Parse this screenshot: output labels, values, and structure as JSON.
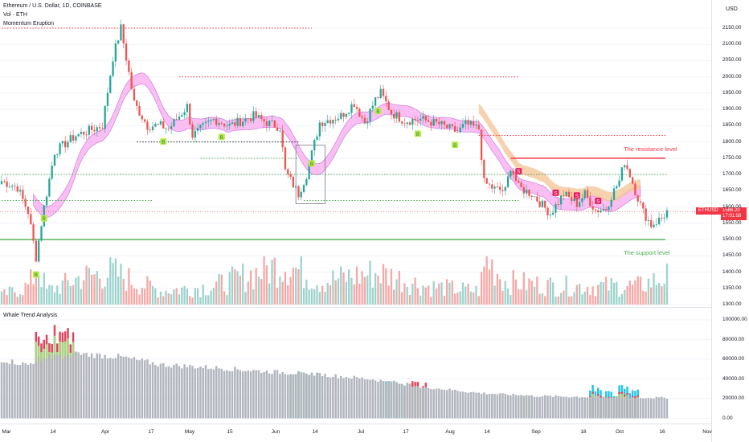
{
  "legend": {
    "title": "Ethereum / U.S. Dollar, 1D, COINBASE",
    "vol": "Vol · ETH",
    "indicator": "Momentum Eruption",
    "lower_indicator": "Whale Trend Analysis"
  },
  "currency": "USD",
  "price_badge": {
    "symbol": "ETHUSD",
    "price": "1586.20",
    "countdown": "17:01:58"
  },
  "colors": {
    "up": "#26a69a",
    "down": "#ef5350",
    "support": "#4caf50",
    "resistance": "#f23645",
    "band_pink": "#f7a8ee",
    "band_orange": "#f5c79a"
  },
  "annotations": {
    "resistance": "The resistance level",
    "support": "The support level"
  },
  "signal_marks": {
    "buy": "B",
    "sell": "S"
  },
  "chart_data": [
    {
      "type": "candlestick",
      "title": "Ethereum / U.S. Dollar, 1D, COINBASE",
      "y_ticks": [
        "2150.00",
        "2100.00",
        "2050.00",
        "2000.00",
        "1950.00",
        "1900.00",
        "1850.00",
        "1800.00",
        "1750.00",
        "1700.00",
        "1650.00",
        "1600.00",
        "1550.00",
        "1500.00",
        "1450.00",
        "1400.00",
        "1350.00",
        "1300.00"
      ],
      "x_ticks": [
        "Mar",
        "14",
        "Apr",
        "17",
        "May",
        "15",
        "Jun",
        "14",
        "Jul",
        "17",
        "Aug",
        "14",
        "Sep",
        "18",
        "Oct",
        "16",
        "Nov"
      ],
      "ylim": [
        1300,
        2175
      ],
      "close_anchors": [
        [
          0,
          1680
        ],
        [
          6,
          1660
        ],
        [
          10,
          1585
        ],
        [
          13,
          1445
        ],
        [
          16,
          1600
        ],
        [
          20,
          1770
        ],
        [
          28,
          1820
        ],
        [
          38,
          1850
        ],
        [
          42,
          2060
        ],
        [
          45,
          2150
        ],
        [
          50,
          1920
        ],
        [
          55,
          1850
        ],
        [
          60,
          1850
        ],
        [
          63,
          1840
        ],
        [
          70,
          1910
        ],
        [
          72,
          1820
        ],
        [
          80,
          1870
        ],
        [
          86,
          1850
        ],
        [
          95,
          1880
        ],
        [
          100,
          1860
        ],
        [
          105,
          1845
        ],
        [
          107,
          1710
        ],
        [
          112,
          1640
        ],
        [
          115,
          1700
        ],
        [
          120,
          1860
        ],
        [
          128,
          1880
        ],
        [
          133,
          1920
        ],
        [
          137,
          1860
        ],
        [
          141,
          1930
        ],
        [
          143,
          1950
        ],
        [
          147,
          1890
        ],
        [
          152,
          1865
        ],
        [
          158,
          1870
        ],
        [
          165,
          1855
        ],
        [
          172,
          1830
        ],
        [
          175,
          1855
        ],
        [
          180,
          1840
        ],
        [
          182,
          1675
        ],
        [
          186,
          1655
        ],
        [
          190,
          1650
        ],
        [
          192,
          1725
        ],
        [
          195,
          1660
        ],
        [
          200,
          1640
        ],
        [
          207,
          1580
        ],
        [
          212,
          1640
        ],
        [
          217,
          1610
        ],
        [
          220,
          1640
        ],
        [
          224,
          1590
        ],
        [
          228,
          1595
        ],
        [
          230,
          1635
        ],
        [
          233,
          1680
        ],
        [
          235,
          1740
        ],
        [
          237,
          1700
        ],
        [
          239,
          1650
        ],
        [
          242,
          1585
        ],
        [
          245,
          1545
        ],
        [
          249,
          1565
        ],
        [
          251,
          1586
        ]
      ],
      "volume_anchors": [
        [
          0,
          2
        ],
        [
          10,
          4
        ],
        [
          14,
          8
        ],
        [
          17,
          3
        ],
        [
          22,
          4
        ],
        [
          30,
          6
        ],
        [
          42,
          7
        ],
        [
          50,
          5
        ],
        [
          60,
          3
        ],
        [
          80,
          4
        ],
        [
          107,
          9
        ],
        [
          120,
          5
        ],
        [
          142,
          7
        ],
        [
          160,
          4
        ],
        [
          180,
          3
        ],
        [
          183,
          10
        ],
        [
          190,
          5
        ],
        [
          210,
          4
        ],
        [
          240,
          4
        ],
        [
          251,
          6
        ]
      ],
      "levels": {
        "resistance": 1750,
        "support": 1500
      },
      "dotted_levels": [
        {
          "price": 2150,
          "from": 0,
          "to": 117,
          "color": "#f23645"
        },
        {
          "price": 2000,
          "from": 67,
          "to": 195,
          "color": "#f23645"
        },
        {
          "price": 1820,
          "from": 180,
          "to": 251,
          "color": "#f23645"
        },
        {
          "price": 1800,
          "from": 51,
          "to": 112,
          "color": "#131722"
        },
        {
          "price": 1750,
          "from": 75,
          "to": 112,
          "color": "#4caf50"
        },
        {
          "price": 1700,
          "from": 0,
          "to": 251,
          "color": "#4caf50"
        },
        {
          "price": 1620,
          "from": 0,
          "to": 57,
          "color": "#4caf50"
        },
        {
          "price": 1620,
          "from": 114,
          "to": 195,
          "color": "#4caf50"
        }
      ],
      "buy_signals": [
        13,
        16,
        61,
        83,
        117,
        142,
        157,
        171
      ],
      "sell_signals": [
        195,
        209,
        217,
        225
      ],
      "band_start": 12,
      "band_end": 241
    },
    {
      "type": "bar",
      "title": "Whale Trend Analysis",
      "y_ticks": [
        "100000.00",
        "80000.00",
        "60000.00",
        "40000.00",
        "20000.00",
        "0.00"
      ],
      "ylim": [
        0,
        100000
      ],
      "base_anchors": [
        [
          0,
          60000
        ],
        [
          10,
          55000
        ],
        [
          15,
          62000
        ],
        [
          30,
          66000
        ],
        [
          45,
          63000
        ],
        [
          60,
          55000
        ],
        [
          80,
          52000
        ],
        [
          100,
          48000
        ],
        [
          120,
          45000
        ],
        [
          140,
          40000
        ],
        [
          160,
          32000
        ],
        [
          180,
          26000
        ],
        [
          200,
          23000
        ],
        [
          220,
          22000
        ],
        [
          251,
          21000
        ]
      ],
      "spikes": [
        {
          "from": 13,
          "to": 28,
          "green": 85000,
          "red": 96000
        },
        {
          "from": 109,
          "to": 120,
          "green": 30000,
          "cyan": 36000
        },
        {
          "from": 143,
          "to": 152,
          "green": 28000,
          "cyan": 40000
        },
        {
          "from": 153,
          "to": 160,
          "red": 38000,
          "green": 30000
        },
        {
          "from": 195,
          "to": 199,
          "green": 25000
        },
        {
          "from": 222,
          "to": 240,
          "cyan": 34000,
          "red": 27000,
          "green": 25000
        }
      ]
    }
  ]
}
